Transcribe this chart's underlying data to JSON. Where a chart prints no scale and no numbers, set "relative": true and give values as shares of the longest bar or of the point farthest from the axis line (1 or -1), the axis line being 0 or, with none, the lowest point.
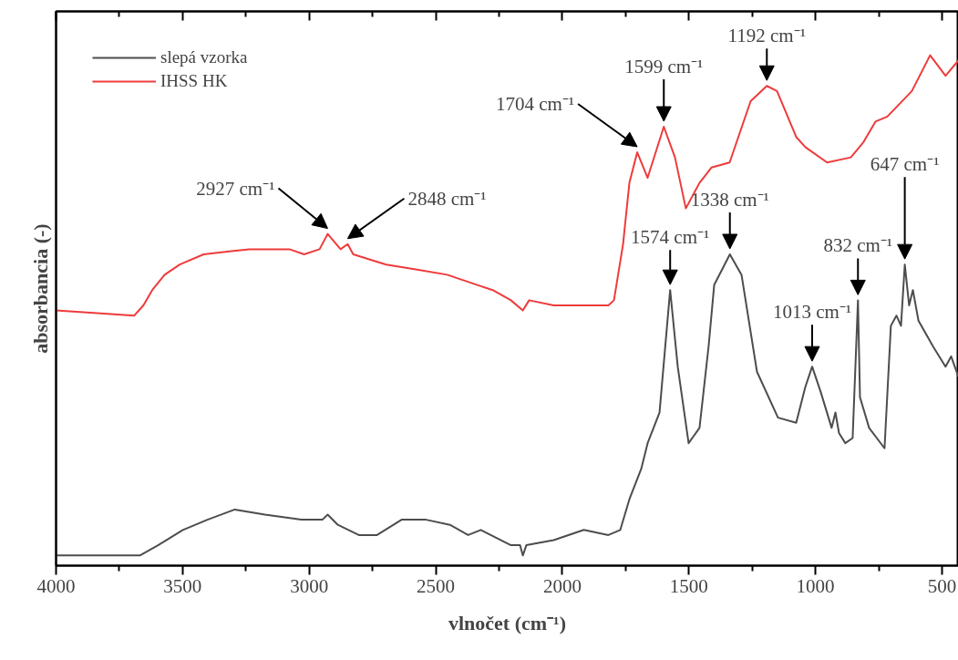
{
  "chart_data": {
    "type": "line",
    "relative": true,
    "xlabel": "vlnočet (cm⁻¹)",
    "ylabel": "absorbancia (-)",
    "xlim": [
      4000,
      435
    ],
    "xticks": [
      4000,
      {
        "value": 3750,
        "label": null
      },
      3500,
      {
        "value": 3250,
        "label": null
      },
      3000,
      {
        "value": 2750,
        "label": null
      },
      2500,
      {
        "value": 2250,
        "label": null
      },
      2000,
      {
        "value": 1750,
        "label": null
      },
      1500,
      {
        "value": 1250,
        "label": null
      },
      1000,
      {
        "value": 750,
        "label": null
      },
      500
    ],
    "tick_labels": "x",
    "grid": false,
    "legend": "top left",
    "marker": "none",
    "line_style": "solid",
    "series": [
      {
        "name": "slepá vzorka",
        "color": "#4d4d4d",
        "x": [
          4000,
          3762,
          3669,
          3597,
          3499,
          3402,
          3294,
          3175,
          3031,
          2948,
          2927,
          2887,
          2804,
          2732,
          2635,
          2538,
          2444,
          2372,
          2322,
          2203,
          2167,
          2156,
          2142,
          2034,
          1915,
          1818,
          1771,
          1735,
          1688,
          1663,
          1616,
          1574,
          1544,
          1501,
          1458,
          1422,
          1400,
          1338,
          1292,
          1231,
          1148,
          1076,
          1040,
          1013,
          979,
          936,
          921,
          907,
          882,
          853,
          832,
          824,
          788,
          727,
          702,
          680,
          662,
          647,
          630,
          615,
          593,
          536,
          486,
          464,
          435
        ],
        "values": [
          0.02,
          0.02,
          0.02,
          0.04,
          0.07,
          0.09,
          0.11,
          0.1,
          0.09,
          0.09,
          0.1,
          0.08,
          0.06,
          0.06,
          0.09,
          0.09,
          0.08,
          0.06,
          0.07,
          0.04,
          0.04,
          0.02,
          0.04,
          0.05,
          0.07,
          0.06,
          0.07,
          0.13,
          0.19,
          0.24,
          0.3,
          0.54,
          0.39,
          0.24,
          0.27,
          0.43,
          0.55,
          0.61,
          0.57,
          0.38,
          0.29,
          0.28,
          0.35,
          0.39,
          0.34,
          0.27,
          0.3,
          0.26,
          0.24,
          0.25,
          0.52,
          0.33,
          0.27,
          0.23,
          0.47,
          0.49,
          0.47,
          0.59,
          0.51,
          0.54,
          0.48,
          0.43,
          0.39,
          0.41,
          0.37
        ]
      },
      {
        "name": "IHSS HK",
        "color": "#ee3b3b",
        "x": [
          4000,
          3691,
          3655,
          3620,
          3571,
          3511,
          3417,
          3237,
          3078,
          3020,
          2959,
          2927,
          2876,
          2848,
          2826,
          2696,
          2574,
          2455,
          2336,
          2275,
          2203,
          2156,
          2131,
          2034,
          1915,
          1818,
          1796,
          1760,
          1735,
          1704,
          1663,
          1599,
          1555,
          1512,
          1458,
          1411,
          1339,
          1256,
          1192,
          1152,
          1076,
          1040,
          954,
          860,
          810,
          763,
          716,
          619,
          547,
          486,
          435
        ],
        "values": [
          0.5,
          0.49,
          0.51,
          0.54,
          0.57,
          0.59,
          0.61,
          0.62,
          0.62,
          0.61,
          0.62,
          0.65,
          0.62,
          0.63,
          0.61,
          0.59,
          0.58,
          0.57,
          0.55,
          0.54,
          0.52,
          0.5,
          0.52,
          0.51,
          0.51,
          0.51,
          0.52,
          0.63,
          0.75,
          0.81,
          0.76,
          0.86,
          0.8,
          0.7,
          0.75,
          0.78,
          0.79,
          0.91,
          0.94,
          0.93,
          0.84,
          0.82,
          0.79,
          0.8,
          0.83,
          0.87,
          0.88,
          0.93,
          1.0,
          0.96,
          0.99
        ]
      }
    ],
    "annotations": [
      {
        "text": "2927 cm⁻¹",
        "x": 2927,
        "y": 0.65
      },
      {
        "text": "2848 cm⁻¹",
        "x": 2848,
        "y": 0.63
      },
      {
        "text": "1704 cm⁻¹",
        "x": 1704,
        "y": 0.81
      },
      {
        "text": "1599 cm⁻¹",
        "x": 1599,
        "y": 0.86
      },
      {
        "text": "1192 cm⁻¹",
        "x": 1192,
        "y": 0.94
      },
      {
        "text": "1574 cm⁻¹",
        "x": 1574,
        "y": 0.54
      },
      {
        "text": "1338 cm⁻¹",
        "x": 1338,
        "y": 0.61
      },
      {
        "text": "1013 cm⁻¹",
        "x": 1013,
        "y": 0.39
      },
      {
        "text": "832 cm⁻¹",
        "x": 832,
        "y": 0.52
      },
      {
        "text": "647 cm⁻¹",
        "x": 647,
        "y": 0.59
      }
    ]
  }
}
